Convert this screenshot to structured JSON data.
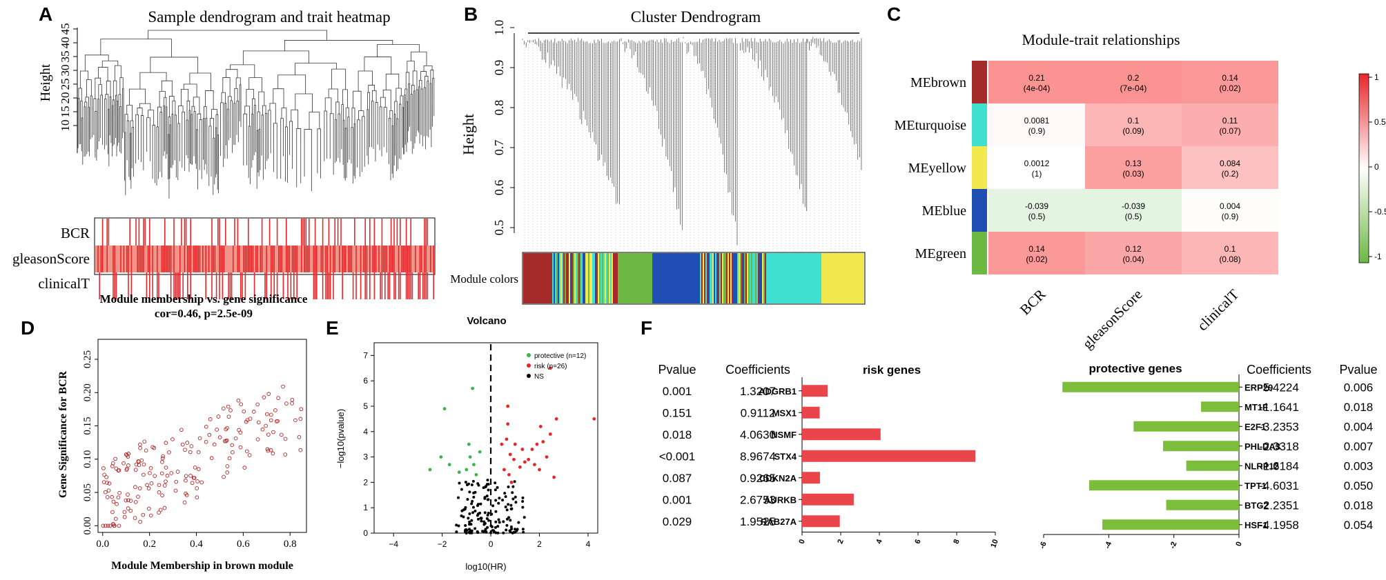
{
  "panel_letters": {
    "a": "A",
    "b": "B",
    "c": "C",
    "d": "D",
    "e": "E",
    "f": "F"
  },
  "colors": {
    "brown": "#a52a2a",
    "turquoise": "#40e0d0",
    "yellow": "#f2e94e",
    "blue": "#1f4fb4",
    "green": "#6cb843",
    "heat_red": "#e8262a",
    "risk_bar": "#e9454b",
    "prot_bar": "#7cbd3c"
  },
  "chart_data": [
    {
      "id": "A",
      "type": "dendrogram",
      "title": "Sample dendrogram and trait heatmap",
      "ylabel": "Height",
      "y_ticks": [
        "10",
        "15",
        "20",
        "25",
        "30",
        "35",
        "40",
        "45"
      ],
      "trait_rows": [
        "BCR",
        "gleasonScore",
        "clinicalT"
      ]
    },
    {
      "id": "B",
      "type": "dendrogram",
      "title": "Cluster Dendrogram",
      "ylabel": "Height",
      "y_ticks": [
        "0.5",
        "0.6",
        "0.7",
        "0.8",
        "0.9",
        "1.0"
      ],
      "module_label": "Module colors",
      "module_order": [
        "brown",
        "turquoise",
        "yellow",
        "green",
        "blue"
      ]
    },
    {
      "id": "C",
      "type": "heatmap",
      "title": "Module-trait relationships",
      "rows": [
        "MEbrown",
        "MEturquoise",
        "MEyellow",
        "MEblue",
        "MEgreen"
      ],
      "row_colors": [
        "#a52a2a",
        "#40e0d0",
        "#f2e94e",
        "#1f4fb4",
        "#6cb843"
      ],
      "columns": [
        "BCR",
        "gleasonScore",
        "clinicalT"
      ],
      "values": [
        [
          "0.21",
          "0.2",
          "0.14"
        ],
        [
          "0.0081",
          "0.1",
          "0.11"
        ],
        [
          "0.0012",
          "0.13",
          "0.084"
        ],
        [
          "-0.039",
          "-0.039",
          "0.004"
        ],
        [
          "0.14",
          "0.12",
          "0.1"
        ]
      ],
      "pvalues": [
        [
          "(4e-04)",
          "(7e-04)",
          "(0.02)"
        ],
        [
          "(0.9)",
          "(0.09)",
          "(0.07)"
        ],
        [
          "(1)",
          "(0.03)",
          "(0.2)"
        ],
        [
          "(0.5)",
          "(0.5)",
          "(0.9)"
        ],
        [
          "(0.02)",
          "(0.04)",
          "(0.08)"
        ]
      ],
      "colorbar_ticks": [
        "1",
        "0.5",
        "0",
        "-0.5",
        "-1"
      ],
      "range": [
        -1,
        1
      ]
    },
    {
      "id": "D",
      "type": "scatter",
      "title": "Module membership vs. gene significance",
      "subtitle": "cor=0.46, p=2.5e-09",
      "xlabel": "Module Membership in brown module",
      "ylabel": "Gene Significance for BCR",
      "xlim": [
        -0.02,
        0.87
      ],
      "ylim": [
        -0.01,
        0.28
      ],
      "x_ticks": [
        0.0,
        0.2,
        0.4,
        0.6,
        0.8
      ],
      "x_tick_labels": [
        "0.0",
        "0.2",
        "0.4",
        "0.6",
        "0.8"
      ],
      "y_ticks": [
        0.0,
        0.05,
        0.1,
        0.15,
        0.2,
        0.25
      ],
      "y_tick_labels": [
        "0.00",
        "0.05",
        "0.10",
        "0.15",
        "0.20",
        "0.25"
      ],
      "n_points": 190
    },
    {
      "id": "E",
      "type": "scatter",
      "title": "Volcano",
      "xlabel": "log10(HR)",
      "ylabel": "−log10(pvalue)",
      "xlim": [
        -4.8,
        4.4
      ],
      "ylim": [
        0,
        7.5
      ],
      "x_ticks": [
        -4,
        -2,
        0,
        2,
        4
      ],
      "y_ticks": [
        0,
        1,
        2,
        3,
        4,
        5,
        6,
        7
      ],
      "legend": [
        "protective (n=12)",
        "risk (n=26)",
        "NS"
      ],
      "protective_points": [
        [
          -2.5,
          2.5
        ],
        [
          -2.05,
          3.0
        ],
        [
          -1.9,
          4.9
        ],
        [
          -1.7,
          2.7
        ],
        [
          -1.3,
          2.4
        ],
        [
          -1.0,
          2.5
        ],
        [
          -0.85,
          3.0
        ],
        [
          -0.9,
          3.5
        ],
        [
          -0.7,
          2.7
        ],
        [
          -0.6,
          2.3
        ],
        [
          -0.75,
          5.7
        ],
        [
          -0.45,
          3.2
        ]
      ],
      "risk_points": [
        [
          0.45,
          3.5
        ],
        [
          0.55,
          2.5
        ],
        [
          0.65,
          3.7
        ],
        [
          0.7,
          4.3
        ],
        [
          0.75,
          2.3
        ],
        [
          0.8,
          3.1
        ],
        [
          0.85,
          2.0
        ],
        [
          0.95,
          2.9
        ],
        [
          1.0,
          3.5
        ],
        [
          1.2,
          2.6
        ],
        [
          1.3,
          3.3
        ],
        [
          1.4,
          2.8
        ],
        [
          1.55,
          2.9
        ],
        [
          1.7,
          3.3
        ],
        [
          1.8,
          2.7
        ],
        [
          1.9,
          3.5
        ],
        [
          2.0,
          2.5
        ],
        [
          2.05,
          4.2
        ],
        [
          2.15,
          3.6
        ],
        [
          2.3,
          3.0
        ],
        [
          2.45,
          3.9
        ],
        [
          2.6,
          2.2
        ],
        [
          2.7,
          4.5
        ],
        [
          4.25,
          4.5
        ],
        [
          0.7,
          5.0
        ],
        [
          2.45,
          6.5
        ]
      ]
    },
    {
      "id": "F-risk",
      "type": "bar",
      "title": "risk genes",
      "header_pvalue": "Pvalue",
      "header_coef": "Coefficients",
      "categories": [
        "ADGRB1",
        "MSX1",
        "NSMF",
        "STX4",
        "CDKN2A",
        "AURKB",
        "RAB27A"
      ],
      "values": [
        1.3207,
        0.9112,
        4.063,
        8.9674,
        0.9265,
        2.6753,
        1.9525
      ],
      "coef_labels": [
        "1.3207",
        "0.9112",
        "4.0630",
        "8.9674",
        "0.9265",
        "2.6753",
        "1.9525"
      ],
      "pvalue_labels": [
        "0.001",
        "0.151",
        "0.018",
        "<0.001",
        "0.087",
        "0.001",
        "0.029"
      ],
      "xlim": [
        0,
        10
      ],
      "x_ticks": [
        "0",
        "2",
        "4",
        "6",
        "8",
        "10"
      ]
    },
    {
      "id": "F-protective",
      "type": "bar",
      "title": "protective genes",
      "header_pvalue": "Pvalue",
      "header_coef": "Coefficients",
      "categories": [
        "ERP29",
        "MT1F",
        "E2F1",
        "PHLDA3",
        "NLRP12",
        "TPT1",
        "BTG2",
        "HSF1"
      ],
      "values": [
        -5.4224,
        -1.1641,
        -3.2353,
        -2.3318,
        -1.6184,
        -4.6031,
        -2.2351,
        -4.1958
      ],
      "coef_labels": [
        "-5.4224",
        "-1.1641",
        "-3.2353",
        "-2.3318",
        "-1.6184",
        "-4.6031",
        "-2.2351",
        "-4.1958"
      ],
      "pvalue_labels": [
        "0.006",
        "0.018",
        "0.004",
        "0.007",
        "0.003",
        "0.050",
        "0.018",
        "0.054"
      ],
      "xlim": [
        -6,
        0
      ],
      "x_ticks": [
        "-6",
        "-4",
        "-2",
        "0"
      ]
    }
  ]
}
